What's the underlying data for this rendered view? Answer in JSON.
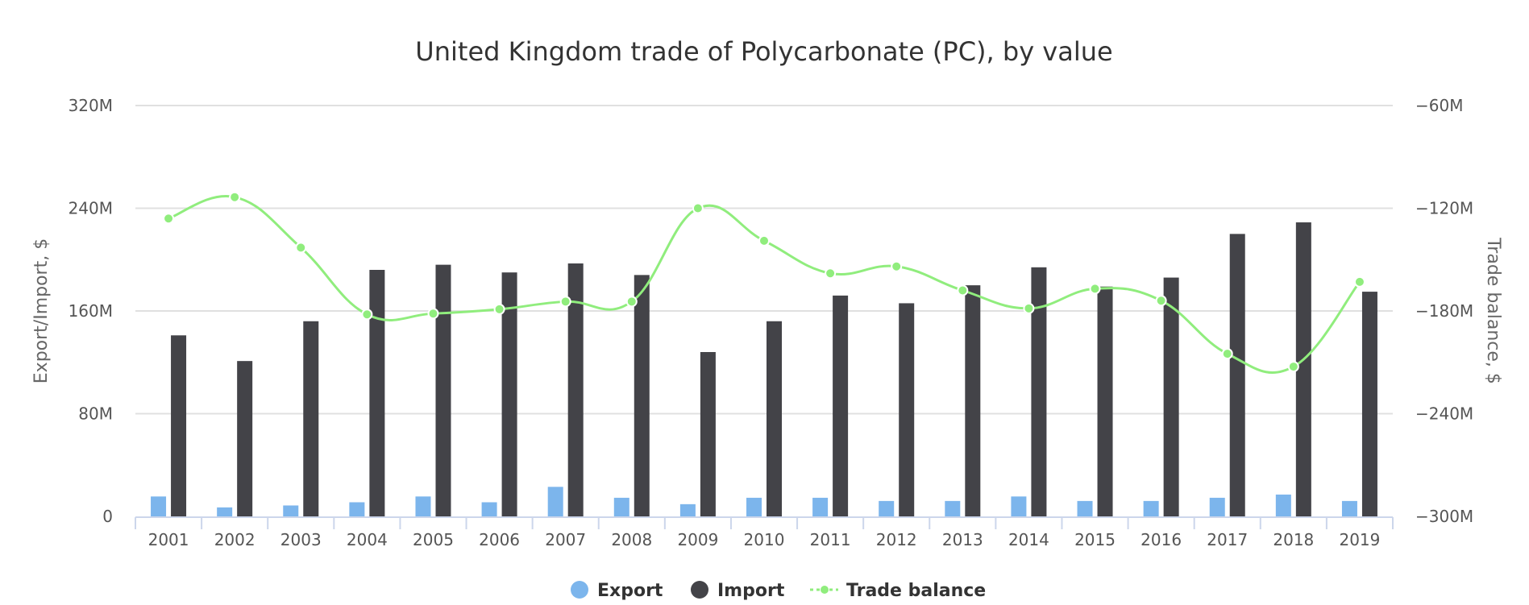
{
  "chart_data": {
    "type": "bar",
    "title": "United Kingdom trade of Polycarbonate (PC), by value",
    "categories": [
      "2001",
      "2002",
      "2003",
      "2004",
      "2005",
      "2006",
      "2007",
      "2008",
      "2009",
      "2010",
      "2011",
      "2012",
      "2013",
      "2014",
      "2015",
      "2016",
      "2017",
      "2018",
      "2019"
    ],
    "left_axis": {
      "label": "Export/Import, $",
      "ylim": [
        0,
        320000000
      ],
      "ticks": [
        {
          "value": 0,
          "label": "0"
        },
        {
          "value": 80000000,
          "label": "80M"
        },
        {
          "value": 160000000,
          "label": "160M"
        },
        {
          "value": 240000000,
          "label": "240M"
        },
        {
          "value": 320000000,
          "label": "320M"
        }
      ]
    },
    "right_axis": {
      "label": "Trade balance, $",
      "ylim": [
        -300000000,
        -60000000
      ],
      "ticks": [
        {
          "value": -300000000,
          "label": "−300M"
        },
        {
          "value": -240000000,
          "label": "−240M"
        },
        {
          "value": -180000000,
          "label": "−180M"
        },
        {
          "value": -120000000,
          "label": "−120M"
        },
        {
          "value": -60000000,
          "label": "−60M"
        }
      ]
    },
    "grid": true,
    "legend_position": "bottom",
    "series": [
      {
        "name": "Export",
        "kind": "bar",
        "axis": "left",
        "color": "#7cb5ec",
        "values": [
          15500000,
          7000000,
          8500000,
          11000000,
          15500000,
          11000000,
          23000000,
          14500000,
          9500000,
          14500000,
          14500000,
          12000000,
          12000000,
          15500000,
          12000000,
          12000000,
          14500000,
          17000000,
          12000000
        ]
      },
      {
        "name": "Import",
        "kind": "bar",
        "axis": "left",
        "color": "#434348",
        "values": [
          141000000,
          121000000,
          152000000,
          192000000,
          196000000,
          190000000,
          197000000,
          188000000,
          128000000,
          152000000,
          172000000,
          166000000,
          180000000,
          194000000,
          179000000,
          186000000,
          220000000,
          229000000,
          175000000
        ]
      },
      {
        "name": "Trade balance",
        "kind": "line",
        "axis": "right",
        "color": "#90ed7d",
        "values": [
          -126000000,
          -113500000,
          -143000000,
          -182000000,
          -181500000,
          -179000000,
          -174500000,
          -174500000,
          -120000000,
          -139000000,
          -158000000,
          -154000000,
          -168000000,
          -178500000,
          -167000000,
          -174000000,
          -205000000,
          -212500000,
          -163000000
        ]
      }
    ]
  }
}
